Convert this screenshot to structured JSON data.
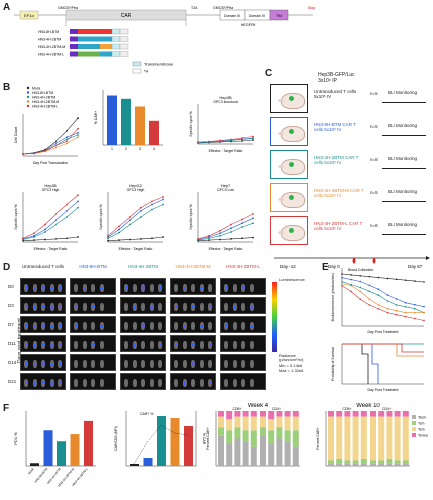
{
  "panel_a": {
    "letter": "A",
    "main_construct": {
      "left_box": "EF1α",
      "linker_left": "GMCSF/Pfra",
      "car": "CAR",
      "t2a": "T2A",
      "linker_right": "GMCSF/Pfra",
      "domain3": "Domain III",
      "domain4": "Domain IV",
      "tm": "TM",
      "stop": "Stop",
      "hegfr": "hEGFRt"
    },
    "constructs": [
      {
        "lab": "HN3-8H-BTM",
        "cols": [
          "#6a2dbd",
          "#e33",
          "#e33"
        ]
      },
      {
        "lab": "HN3-4H-2BTM",
        "cols": [
          "#6a2dbd",
          "#2fa6c9",
          "#2fa6c9"
        ]
      },
      {
        "lab": "HN3-4H-2BTM-M",
        "cols": [
          "#6a2dbd",
          "#2fa6c9",
          "#f2a23a"
        ]
      },
      {
        "lab": "HN3-4H-2BTM-L",
        "cols": [
          "#6a2dbd",
          "#6ab04c",
          "#2fa6c9"
        ]
      }
    ],
    "legend": [
      "Transmembrane",
      "*H"
    ]
  },
  "panel_b": {
    "letter": "B",
    "legend": [
      "Mock",
      "HN3-8H-BTM",
      "HN3-4H-2BTM",
      "HN3-4H-2BTM-M",
      "HN3-4H-2BTM-L"
    ],
    "charts": [
      {
        "title": "",
        "xlabel": "Day Post Transduction",
        "ylabel": "Cell Count"
      },
      {
        "title": "",
        "xlabel": "",
        "ylabel": "% CAR+"
      },
      {
        "title": "Hep3B",
        "sub": "GPC3 knockout",
        "xlabel": "Effector : Target Ratio",
        "ylabel": "Specific Lysis %"
      },
      {
        "title": "Hep3B",
        "sub": "GPC3 High",
        "xlabel": "Effector : Target Ratio",
        "ylabel": "Specific Lysis %"
      },
      {
        "title": "HepG2",
        "sub": "GPC3 High",
        "xlabel": "Effector : Target Ratio",
        "ylabel": "Specific Lysis %"
      },
      {
        "title": "Hep7",
        "sub": "GPC3 Low",
        "xlabel": "Effector : Target Ratio",
        "ylabel": "Specific Lysis %"
      }
    ],
    "bar_categories": [
      "1",
      "2",
      "3",
      "4"
    ]
  },
  "panel_c": {
    "letter": "C",
    "header": "Hep3B-GFP/Luc",
    "header2": "3x10⁶ IP",
    "rows": [
      {
        "label": "Untransduced T cells 5x10⁶ IV",
        "n": "n=5",
        "outcome": "BLI Monitoring",
        "color": "#222"
      },
      {
        "label": "HN3-8H-BTM CAR T cells 5x10⁶ IV",
        "n": "n=5",
        "outcome": "BLI Monitoring",
        "color": "#2a5dd8"
      },
      {
        "label": "HN3-4H-2BTM CAR T cells 5x10⁶ IV",
        "n": "n=8",
        "outcome": "BLI Monitoring",
        "color": "#1a8f8f"
      },
      {
        "label": "HN3-4H-2BTM-M CAR T cells 5x10⁶ IV",
        "n": "n=5",
        "outcome": "BLI Monitoring",
        "color": "#e8892b"
      },
      {
        "label": "HN3-4H-2BTM-L CAR T cells 5x10⁶ IV",
        "n": "n=8",
        "outcome": "BLI Monitoring",
        "color": "#d43a3a"
      }
    ],
    "timeline": [
      "Day -12",
      "Day 0",
      "Blood Collection",
      "Day 67"
    ]
  },
  "panel_d": {
    "letter": "D",
    "columns": [
      {
        "label": "Untransduced T cells",
        "color": "#222"
      },
      {
        "label": "HN3-8H-BTM",
        "color": "#2a5dd8"
      },
      {
        "label": "HN3-4H-2BTM",
        "color": "#1a8f8f"
      },
      {
        "label": "HN3-4H-2BTM-M",
        "color": "#e8892b"
      },
      {
        "label": "HN3-4H-2BTM-L",
        "color": "#d43a3a"
      }
    ],
    "days": [
      "D0",
      "D3",
      "D7",
      "D11",
      "D14",
      "D21"
    ],
    "yaxis": "Days post treatment",
    "colorbar": {
      "title": "Luminescence",
      "unit": "Radiance (p/sec/cm²/sr)",
      "min": "Min = 5.14e6",
      "max": "Max = 1.32e8"
    }
  },
  "panel_e": {
    "letter": "E",
    "top": {
      "ylabel": "Bioluminescence (photons/sec)",
      "xlabel": "Day Post Treatment"
    },
    "bottom": {
      "ylabel": "Probability of Survival",
      "xlabel": "Day Post Treatment"
    }
  },
  "panel_f": {
    "letter": "F",
    "pd1": {
      "ylabel": "PD1 %",
      "categories": [
        "Mock",
        "HN3-8H-BTM",
        "HN3-4H-2BTM",
        "HN3-4H-2BTM-M",
        "HN3-4H-2BTM-L"
      ]
    },
    "car_chart": {
      "ylabel": "CAR/CD3 (MFI)",
      "y2label": "% CAR",
      "legend": [
        "CAR+ %"
      ]
    },
    "week4": {
      "title": "Week 4",
      "groups": [
        "CD8+",
        "CD4+"
      ],
      "ylabel": "Percent CAR+"
    },
    "week10": {
      "title": "Week 10",
      "groups": [
        "CD8+",
        "CD4+"
      ],
      "ylabel": "Percent CAR+",
      "legend": [
        "Tscm",
        "Tcm",
        "Tem",
        "Temra"
      ]
    }
  },
  "chart_data": [
    {
      "type": "line",
      "title": "",
      "xlabel": "Day Post Transduction",
      "ylabel": "",
      "x": [
        0,
        3,
        6,
        9,
        12,
        15
      ],
      "series": [
        {
          "name": "Mock",
          "values": [
            1,
            1.5,
            3,
            7,
            12,
            18
          ]
        },
        {
          "name": "HN3-8H-BTM",
          "values": [
            1,
            1.4,
            2.6,
            6,
            9,
            11
          ]
        },
        {
          "name": "HN3-4H-2BTM",
          "values": [
            1,
            1.3,
            2.4,
            5,
            8,
            10
          ]
        },
        {
          "name": "HN3-4H-2BTM-M",
          "values": [
            1,
            1.2,
            2.2,
            4,
            6,
            9
          ]
        },
        {
          "name": "HN3-4H-2BTM-L",
          "values": [
            1,
            1.2,
            2.5,
            5,
            7,
            13
          ]
        }
      ]
    },
    {
      "type": "bar",
      "title": "",
      "categories": [
        "1",
        "2",
        "3",
        "4"
      ],
      "values": [
        45,
        42,
        35,
        22
      ],
      "ylim": [
        0,
        50
      ],
      "ylabel": ""
    },
    {
      "type": "line",
      "title": "Hep3B GPC3 knockout",
      "x": [
        0.6,
        1.25,
        2.5,
        5,
        10,
        20
      ],
      "series": [
        {
          "name": "Mock",
          "values": [
            2,
            3,
            4,
            5,
            6,
            8
          ]
        },
        {
          "name": "HN3-8H-BTM",
          "values": [
            3,
            4,
            6,
            8,
            10,
            12
          ]
        },
        {
          "name": "HN3-4H-2BTM",
          "values": [
            2,
            4,
            5,
            7,
            9,
            11
          ]
        },
        {
          "name": "HN3-4H-2BTM-L",
          "values": [
            4,
            5,
            7,
            9,
            12,
            15
          ]
        }
      ]
    },
    {
      "type": "line",
      "title": "Hep3B GPC3 High",
      "x": [
        0.6,
        1.25,
        2.5,
        5,
        10,
        20
      ],
      "series": [
        {
          "name": "Mock",
          "values": [
            2,
            3,
            4,
            5,
            6,
            8
          ]
        },
        {
          "name": "HN3-8H-BTM",
          "values": [
            5,
            10,
            20,
            35,
            50,
            65
          ]
        },
        {
          "name": "HN3-4H-2BTM",
          "values": [
            4,
            8,
            16,
            28,
            40,
            55
          ]
        },
        {
          "name": "HN3-4H-2BTM-L",
          "values": [
            6,
            14,
            28,
            45,
            60,
            75
          ]
        }
      ]
    },
    {
      "type": "line",
      "title": "HepG2 GPC3 High",
      "x": [
        0.6,
        1.25,
        2.5,
        5,
        10,
        20
      ],
      "series": [
        {
          "name": "Mock",
          "values": [
            2,
            3,
            4,
            5,
            6,
            8
          ]
        },
        {
          "name": "HN3-8H-BTM",
          "values": [
            8,
            20,
            35,
            50,
            60,
            68
          ]
        },
        {
          "name": "HN3-4H-2BTM",
          "values": [
            6,
            15,
            28,
            40,
            52,
            60
          ]
        },
        {
          "name": "HN3-4H-2BTM-L",
          "values": [
            10,
            25,
            40,
            55,
            65,
            72
          ]
        }
      ]
    },
    {
      "type": "line",
      "title": "Hep7 GPC3 Low",
      "x": [
        0.6,
        1.25,
        2.5,
        5,
        10,
        20
      ],
      "series": [
        {
          "name": "Mock",
          "values": [
            2,
            3,
            4,
            5,
            6,
            7
          ]
        },
        {
          "name": "HN3-8H-BTM",
          "values": [
            4,
            8,
            14,
            22,
            30,
            38
          ]
        },
        {
          "name": "HN3-4H-2BTM",
          "values": [
            3,
            6,
            10,
            16,
            24,
            30
          ]
        },
        {
          "name": "HN3-4H-2BTM-L",
          "values": [
            5,
            10,
            18,
            28,
            36,
            45
          ]
        }
      ]
    },
    {
      "type": "bar",
      "title": "PD1 %",
      "categories": [
        "Mock",
        "HN3-8H-BTM",
        "HN3-4H-2BTM",
        "HN3-4H-2BTM-M",
        "HN3-4H-2BTM-L"
      ],
      "values": [
        5,
        65,
        45,
        58,
        82
      ],
      "ylim": [
        0,
        100
      ]
    }
  ]
}
